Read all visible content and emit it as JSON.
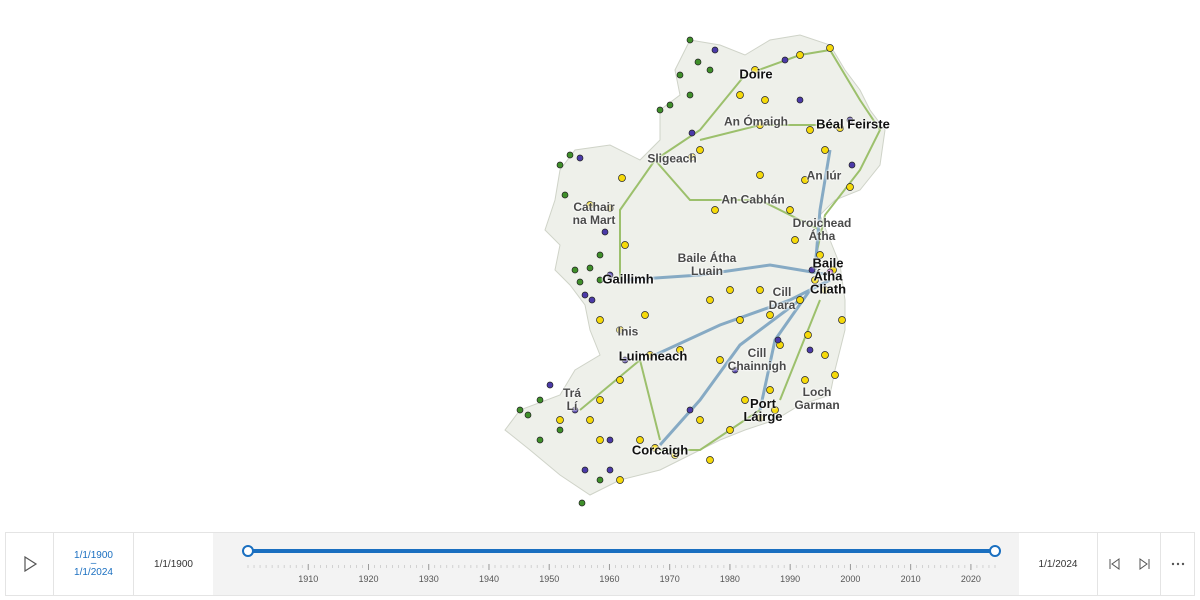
{
  "map": {
    "places": [
      {
        "name": "Doire",
        "major": true
      },
      {
        "name": "Béal Feirste",
        "major": true
      },
      {
        "name": "An Ómaigh",
        "major": false
      },
      {
        "name": "Sligeach",
        "major": false
      },
      {
        "name": "An Iúr",
        "major": false
      },
      {
        "name": "An Cabhán",
        "major": false
      },
      {
        "name": "Cathair\nna Mart",
        "major": false
      },
      {
        "name": "Droichead\nÁtha",
        "major": false
      },
      {
        "name": "Baile Átha\nLuain",
        "major": false
      },
      {
        "name": "Gaillimh",
        "major": true
      },
      {
        "name": "Baile\nÁtha\nCliath",
        "major": true
      },
      {
        "name": "Cill\nDara",
        "major": false
      },
      {
        "name": "Inis",
        "major": false
      },
      {
        "name": "Luimneach",
        "major": true
      },
      {
        "name": "Cill\nChainnigh",
        "major": false
      },
      {
        "name": "Loch\nGarman",
        "major": false
      },
      {
        "name": "Trá\nLí",
        "major": false
      },
      {
        "name": "Port\nLáirge",
        "major": true
      },
      {
        "name": "Corcaigh",
        "major": true
      }
    ]
  },
  "timeline": {
    "extent_start": "1/1/1900",
    "extent_separator": "–",
    "extent_end": "1/1/2024",
    "min_label": "1/1/1900",
    "max_label": "1/1/2024",
    "ticks": [
      1910,
      1920,
      1930,
      1940,
      1950,
      1960,
      1970,
      1980,
      1990,
      2000,
      2010,
      2020
    ]
  }
}
